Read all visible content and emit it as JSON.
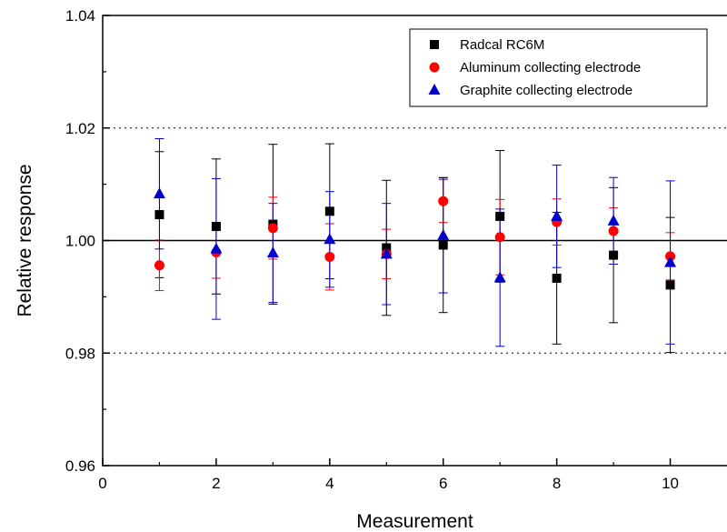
{
  "chart_data": {
    "type": "scatter",
    "xlabel": "Measurement",
    "ylabel": "Relative response",
    "xlim": [
      0,
      11
    ],
    "ylim": [
      0.96,
      1.04
    ],
    "x_ticks": [
      "0",
      "2",
      "4",
      "6",
      "8",
      "10"
    ],
    "y_ticks": [
      "0.96",
      "0.98",
      "1.00",
      "1.02",
      "1.04"
    ],
    "x": [
      1,
      2,
      3,
      4,
      5,
      6,
      7,
      8,
      9,
      10
    ],
    "reference_line": 1.0,
    "dotted_lines": [
      0.98,
      1.02
    ],
    "legend_position": "top-right",
    "series": [
      {
        "name": "Radcal RC6M",
        "marker": "square",
        "color": "#000000",
        "values": [
          1.0046,
          1.0025,
          1.0029,
          1.0052,
          0.9987,
          0.9992,
          1.0043,
          0.9933,
          0.9974,
          0.9921
        ],
        "errors": [
          0.0112,
          0.012,
          0.0142,
          0.012,
          0.012,
          0.012,
          0.0117,
          0.0117,
          0.012,
          0.012
        ]
      },
      {
        "name": "Aluminum collecting electrode",
        "marker": "circle",
        "color": "#ff0000",
        "values": [
          0.9956,
          0.9979,
          1.0022,
          0.9971,
          0.9976,
          1.007,
          1.0006,
          1.0033,
          1.0017,
          0.9972
        ],
        "errors": [
          0.0045,
          0.0046,
          0.0055,
          0.0059,
          0.0044,
          0.0038,
          0.0067,
          0.0041,
          0.0041,
          0.0042
        ]
      },
      {
        "name": "Graphite collecting electrode",
        "marker": "triangle",
        "color": "#0000cc",
        "values": [
          1.0083,
          0.9985,
          0.9978,
          1.0002,
          0.9976,
          1.0009,
          0.9934,
          1.0043,
          1.0035,
          0.9961
        ],
        "errors": [
          0.0098,
          0.0125,
          0.0088,
          0.0085,
          0.009,
          0.0102,
          0.0122,
          0.0091,
          0.0077,
          0.0145
        ]
      }
    ]
  }
}
